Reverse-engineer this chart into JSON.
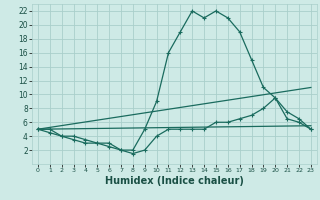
{
  "xlabel": "Humidex (Indice chaleur)",
  "bg_color": "#ceeae6",
  "grid_color": "#aacfcb",
  "line_color": "#1a6b5e",
  "xlim": [
    -0.5,
    23.5
  ],
  "ylim": [
    0,
    23
  ],
  "xticks": [
    0,
    1,
    2,
    3,
    4,
    5,
    6,
    7,
    8,
    9,
    10,
    11,
    12,
    13,
    14,
    15,
    16,
    17,
    18,
    19,
    20,
    21,
    22,
    23
  ],
  "yticks": [
    2,
    4,
    6,
    8,
    10,
    12,
    14,
    16,
    18,
    20,
    22
  ],
  "series1_x": [
    0,
    1,
    2,
    3,
    4,
    5,
    6,
    7,
    8,
    9,
    10,
    11,
    12,
    13,
    14,
    15,
    16,
    17,
    18,
    19,
    20,
    21,
    22,
    23
  ],
  "series1_y": [
    5,
    5,
    4,
    4,
    3.5,
    3,
    3,
    2,
    2,
    5,
    9,
    16,
    19,
    22,
    21,
    22,
    21,
    19,
    15,
    11,
    9.5,
    6.5,
    6,
    5
  ],
  "series2_x": [
    0,
    1,
    2,
    3,
    4,
    5,
    6,
    7,
    8,
    9,
    10,
    11,
    12,
    13,
    14,
    15,
    16,
    17,
    18,
    19,
    20,
    21,
    22,
    23
  ],
  "series2_y": [
    5,
    4.5,
    4,
    3.5,
    3,
    3,
    2.5,
    2,
    1.5,
    2,
    4,
    5,
    5,
    5,
    5,
    6,
    6,
    6.5,
    7,
    8,
    9.5,
    7.5,
    6.5,
    5
  ],
  "series3_x": [
    0,
    23
  ],
  "series3_y": [
    5,
    5.5
  ],
  "series4_x": [
    0,
    23
  ],
  "series4_y": [
    5,
    11
  ]
}
